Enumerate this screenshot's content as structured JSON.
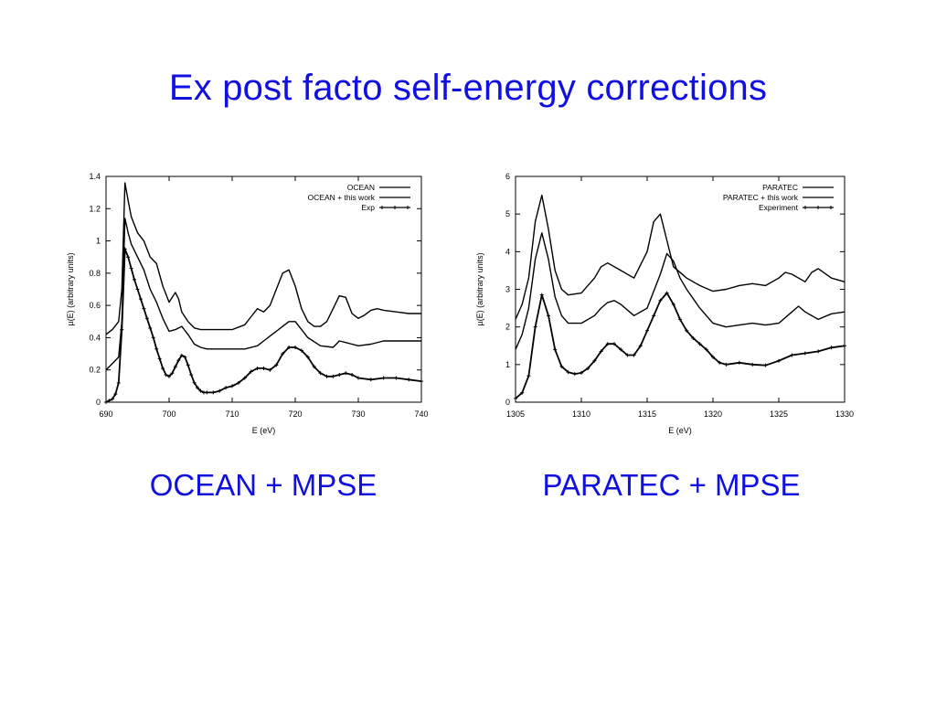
{
  "slide": {
    "title": "Ex post facto self-energy corrections",
    "caption_left": "OCEAN + MPSE",
    "caption_right": "PARATEC + MPSE"
  },
  "colors": {
    "title": "#1010e0",
    "lines": "#000000"
  },
  "chart_data": [
    {
      "type": "line",
      "xlabel": "E (eV)",
      "ylabel": "µ(E) (arbitrary units)",
      "xlim": [
        690,
        740
      ],
      "ylim": [
        0,
        1.4
      ],
      "xticks": [
        690,
        700,
        710,
        720,
        730,
        740
      ],
      "yticks": [
        0,
        0.2,
        0.4,
        0.6,
        0.8,
        1,
        1.2,
        1.4
      ],
      "ytick_labels": [
        "0",
        "0.2",
        "0.4",
        "0.6",
        "0.8",
        "1",
        "1.2",
        "1.4"
      ],
      "grid": false,
      "legend_position": "top-right",
      "series": [
        {
          "name": "OCEAN",
          "marker": "none",
          "x": [
            690,
            691,
            692,
            692.5,
            693,
            693.5,
            694,
            695,
            696,
            697,
            698,
            699,
            700,
            700.5,
            701,
            701.5,
            702,
            703,
            704,
            705,
            706,
            708,
            710,
            712,
            713,
            714,
            715,
            716,
            717,
            718,
            719,
            720,
            721,
            722,
            723,
            724,
            725,
            726,
            727,
            728,
            729,
            730,
            731,
            732,
            733,
            734,
            736,
            738,
            740
          ],
          "y": [
            0.42,
            0.45,
            0.5,
            0.7,
            1.36,
            1.25,
            1.15,
            1.05,
            1.0,
            0.9,
            0.86,
            0.72,
            0.62,
            0.65,
            0.68,
            0.64,
            0.56,
            0.5,
            0.46,
            0.45,
            0.45,
            0.45,
            0.45,
            0.48,
            0.53,
            0.58,
            0.56,
            0.6,
            0.7,
            0.8,
            0.82,
            0.72,
            0.58,
            0.5,
            0.47,
            0.47,
            0.5,
            0.58,
            0.66,
            0.65,
            0.55,
            0.52,
            0.54,
            0.57,
            0.58,
            0.57,
            0.56,
            0.55,
            0.55
          ]
        },
        {
          "name": "OCEAN + this work",
          "marker": "none",
          "x": [
            690,
            691,
            692,
            692.5,
            693,
            693.5,
            694,
            695,
            696,
            697,
            698,
            699,
            700,
            701,
            702,
            703,
            704,
            705,
            706,
            708,
            710,
            712,
            714,
            715,
            716,
            717,
            718,
            719,
            720,
            721,
            722,
            724,
            726,
            727,
            728,
            730,
            732,
            734,
            736,
            738,
            740
          ],
          "y": [
            0.2,
            0.24,
            0.28,
            0.5,
            1.14,
            1.05,
            0.98,
            0.9,
            0.82,
            0.7,
            0.62,
            0.52,
            0.44,
            0.45,
            0.47,
            0.42,
            0.36,
            0.34,
            0.33,
            0.33,
            0.33,
            0.33,
            0.35,
            0.38,
            0.41,
            0.44,
            0.47,
            0.5,
            0.5,
            0.45,
            0.4,
            0.35,
            0.34,
            0.38,
            0.37,
            0.35,
            0.36,
            0.38,
            0.38,
            0.38,
            0.38
          ]
        },
        {
          "name": "Exp",
          "marker": "plus",
          "x": [
            690,
            690.5,
            691,
            691.5,
            692,
            692.5,
            693,
            693.5,
            694,
            694.5,
            695,
            695.5,
            696,
            696.5,
            697,
            697.5,
            698,
            698.5,
            699,
            699.5,
            700,
            700.5,
            701,
            701.5,
            702,
            702.5,
            703,
            703.5,
            704,
            704.5,
            705,
            705.5,
            706,
            707,
            708,
            709,
            710,
            711,
            712,
            713,
            714,
            715,
            716,
            717,
            718,
            719,
            720,
            721,
            722,
            723,
            724,
            725,
            726,
            727,
            728,
            729,
            730,
            732,
            734,
            736,
            738,
            740
          ],
          "y": [
            0.0,
            0.01,
            0.02,
            0.05,
            0.12,
            0.45,
            0.95,
            0.9,
            0.83,
            0.76,
            0.7,
            0.64,
            0.58,
            0.52,
            0.46,
            0.4,
            0.33,
            0.27,
            0.21,
            0.17,
            0.16,
            0.18,
            0.22,
            0.26,
            0.29,
            0.28,
            0.23,
            0.17,
            0.12,
            0.09,
            0.07,
            0.06,
            0.06,
            0.06,
            0.07,
            0.09,
            0.1,
            0.12,
            0.15,
            0.19,
            0.21,
            0.21,
            0.2,
            0.23,
            0.3,
            0.34,
            0.34,
            0.32,
            0.28,
            0.22,
            0.18,
            0.16,
            0.16,
            0.17,
            0.18,
            0.17,
            0.15,
            0.14,
            0.15,
            0.15,
            0.14,
            0.13
          ]
        }
      ]
    },
    {
      "type": "line",
      "xlabel": "E (eV)",
      "ylabel": "µ(E) (arbitrary units)",
      "xlim": [
        1305,
        1330
      ],
      "ylim": [
        0,
        6
      ],
      "xticks": [
        1305,
        1310,
        1315,
        1320,
        1325,
        1330
      ],
      "yticks": [
        0,
        1,
        2,
        3,
        4,
        5,
        6
      ],
      "ytick_labels": [
        "0",
        "1",
        "2",
        "3",
        "4",
        "5",
        "6"
      ],
      "grid": false,
      "legend_position": "top-right",
      "series": [
        {
          "name": "PARATEC",
          "marker": "none",
          "x": [
            1305,
            1305.5,
            1306,
            1306.5,
            1307,
            1307.5,
            1308,
            1308.5,
            1309,
            1310,
            1311,
            1311.5,
            1312,
            1313,
            1314,
            1315,
            1315.5,
            1316,
            1316.5,
            1317,
            1318,
            1319,
            1320,
            1321,
            1322,
            1323,
            1324,
            1325,
            1325.5,
            1326,
            1327,
            1327.5,
            1328,
            1329,
            1330
          ],
          "y": [
            2.2,
            2.6,
            3.3,
            4.8,
            5.5,
            4.6,
            3.5,
            3.0,
            2.85,
            2.9,
            3.3,
            3.6,
            3.7,
            3.5,
            3.3,
            4.0,
            4.8,
            5.0,
            4.3,
            3.6,
            3.3,
            3.1,
            2.95,
            3.0,
            3.1,
            3.15,
            3.1,
            3.3,
            3.45,
            3.4,
            3.2,
            3.45,
            3.55,
            3.3,
            3.2
          ]
        },
        {
          "name": "PARATEC + this work",
          "marker": "none",
          "x": [
            1305,
            1305.5,
            1306,
            1306.5,
            1307,
            1307.5,
            1308,
            1308.5,
            1309,
            1310,
            1311,
            1311.5,
            1312,
            1312.5,
            1313,
            1314,
            1315,
            1316,
            1316.5,
            1317,
            1317.5,
            1318,
            1319,
            1320,
            1321,
            1322,
            1323,
            1324,
            1325,
            1326,
            1326.5,
            1327,
            1328,
            1329,
            1330
          ],
          "y": [
            1.4,
            1.8,
            2.5,
            3.8,
            4.5,
            3.8,
            2.8,
            2.3,
            2.1,
            2.1,
            2.3,
            2.5,
            2.65,
            2.7,
            2.6,
            2.3,
            2.5,
            3.4,
            3.95,
            3.75,
            3.3,
            3.0,
            2.5,
            2.1,
            2.0,
            2.05,
            2.1,
            2.05,
            2.1,
            2.4,
            2.55,
            2.4,
            2.2,
            2.35,
            2.4
          ]
        },
        {
          "name": "Experiment",
          "marker": "plus",
          "x": [
            1305,
            1305.5,
            1306,
            1306.5,
            1307,
            1307.5,
            1308,
            1308.5,
            1309,
            1309.5,
            1310,
            1310.5,
            1311,
            1311.5,
            1312,
            1312.5,
            1313,
            1313.5,
            1314,
            1314.5,
            1315,
            1315.5,
            1316,
            1316.5,
            1317,
            1317.5,
            1318,
            1318.5,
            1319,
            1319.5,
            1320,
            1320.5,
            1321,
            1322,
            1323,
            1324,
            1325,
            1326,
            1327,
            1328,
            1329,
            1330
          ],
          "y": [
            0.1,
            0.25,
            0.7,
            2.0,
            2.85,
            2.3,
            1.4,
            0.95,
            0.8,
            0.75,
            0.78,
            0.9,
            1.1,
            1.35,
            1.55,
            1.55,
            1.4,
            1.25,
            1.25,
            1.5,
            1.9,
            2.3,
            2.7,
            2.9,
            2.6,
            2.2,
            1.9,
            1.7,
            1.55,
            1.4,
            1.2,
            1.05,
            1.0,
            1.05,
            1.0,
            0.98,
            1.1,
            1.25,
            1.3,
            1.35,
            1.45,
            1.5
          ]
        }
      ]
    }
  ]
}
